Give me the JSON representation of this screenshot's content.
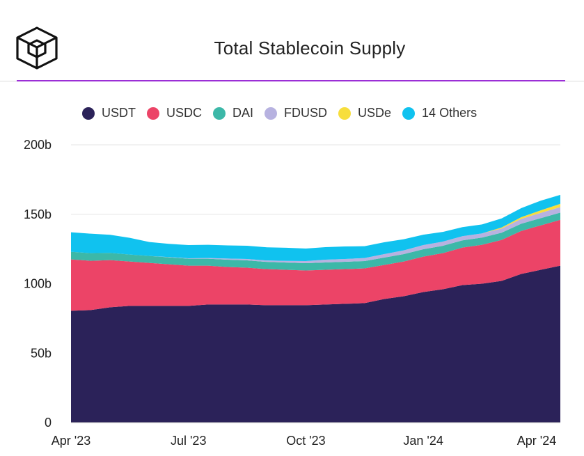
{
  "header": {
    "title": "Total Stablecoin Supply",
    "logo_icon": "cube-logo-icon",
    "accent_color": "#9b2fd6"
  },
  "chart_data": {
    "type": "area",
    "stacked": true,
    "title": "Total Stablecoin Supply",
    "xlabel": "",
    "ylabel": "",
    "ylim": [
      0,
      200
    ],
    "y_ticks": [
      "0",
      "50b",
      "100b",
      "150b",
      "200b"
    ],
    "y_tick_values": [
      0,
      50,
      100,
      150,
      200
    ],
    "x_ticks": [
      "Apr '23",
      "Jul '23",
      "Oct '23",
      "Jan '24",
      "Apr '24"
    ],
    "x_tick_months": [
      0,
      3,
      6,
      9,
      12
    ],
    "grid": true,
    "legend_position": "top",
    "x_months": [
      0,
      0.5,
      1,
      1.5,
      2,
      2.5,
      3,
      3.5,
      4,
      4.5,
      5,
      5.5,
      6,
      6.5,
      7,
      7.5,
      8,
      8.5,
      9,
      9.5,
      10,
      10.5,
      11,
      11.5,
      12,
      12.5
    ],
    "series": [
      {
        "name": "USDT",
        "color": "#2b2259",
        "values": [
          80.5,
          81,
          83,
          84,
          84,
          84,
          84,
          85,
          85,
          85,
          84.5,
          84.5,
          84.5,
          85,
          85.5,
          86,
          89,
          91,
          94,
          96,
          99,
          100,
          102,
          107,
          110,
          113
        ]
      },
      {
        "name": "USDC",
        "color": "#ec4467",
        "values": [
          37,
          35.5,
          34,
          32,
          31,
          30,
          29,
          28,
          27,
          26.5,
          26,
          25.5,
          25,
          25,
          25,
          25,
          24.5,
          25,
          25.5,
          26,
          27,
          28,
          29.5,
          31,
          32,
          33
        ]
      },
      {
        "name": "DAI",
        "color": "#3cb8a8",
        "values": [
          5.5,
          5.5,
          5.2,
          5,
          5,
          5,
          5,
          5,
          5.3,
          5.3,
          5.2,
          5.2,
          5.3,
          5.3,
          5.3,
          5.3,
          5.3,
          5.3,
          5.3,
          5.3,
          5.2,
          5.2,
          5.2,
          5.2,
          5.2,
          5.2
        ]
      },
      {
        "name": "FDUSD",
        "color": "#b7b2e0",
        "values": [
          0,
          0,
          0,
          0,
          0,
          0.2,
          0.3,
          0.5,
          0.8,
          1,
          1,
          1.2,
          1.5,
          2,
          2,
          2.2,
          2.5,
          2.7,
          3,
          3,
          3,
          3,
          3,
          3.5,
          3.8,
          4
        ]
      },
      {
        "name": "USDe",
        "color": "#f7de3c",
        "values": [
          0,
          0,
          0,
          0,
          0,
          0,
          0,
          0,
          0,
          0,
          0,
          0,
          0,
          0,
          0,
          0,
          0,
          0,
          0,
          0,
          0,
          0,
          0.8,
          1.2,
          1.8,
          2.3
        ]
      },
      {
        "name": "14 Others",
        "color": "#10c2ef",
        "values": [
          14,
          14,
          13,
          12,
          10,
          9.5,
          9.5,
          9.5,
          9.5,
          9.5,
          9.5,
          9.5,
          9,
          9,
          9,
          8.5,
          8.5,
          8,
          7.5,
          7,
          6.5,
          6.5,
          6.5,
          6.5,
          7,
          6.5
        ]
      }
    ]
  }
}
